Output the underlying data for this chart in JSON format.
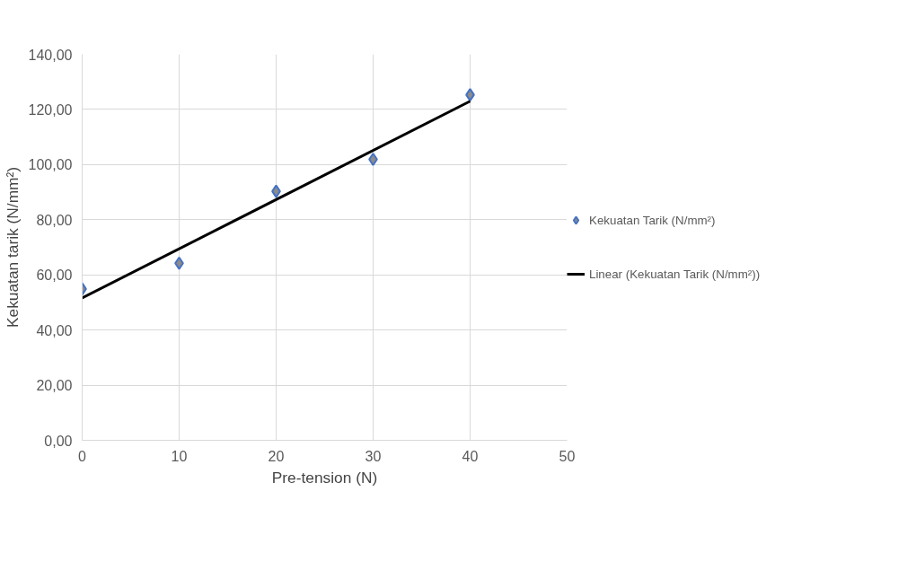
{
  "chart_data": {
    "type": "scatter",
    "xlabel": "Pre-tension (N)",
    "ylabel": "Kekuatan tarik (N/mm²)",
    "series": [
      {
        "name": "Kekuatan Tarik (N/mm²)",
        "color": "#4472c4",
        "marker": "diamond",
        "x": [
          0,
          10,
          20,
          30,
          40
        ],
        "values": [
          54.9,
          64.2,
          90.3,
          101.9,
          125.3
        ]
      },
      {
        "name": "Linear (Kekuatan Tarik (N/mm²))",
        "type": "line",
        "color": "#000000",
        "x": [
          0,
          40
        ],
        "values": [
          51.6,
          123.0
        ]
      }
    ],
    "xlim": [
      0,
      50
    ],
    "xticks": [
      0,
      10,
      20,
      30,
      40,
      50
    ],
    "ylim": [
      0,
      140
    ],
    "yticks": [
      {
        "value": 0,
        "label": "0,00"
      },
      {
        "value": 20,
        "label": "20,00"
      },
      {
        "value": 40,
        "label": "40,00"
      },
      {
        "value": 60,
        "label": "60,00"
      },
      {
        "value": 80,
        "label": "80,00"
      },
      {
        "value": 100,
        "label": "100,00"
      },
      {
        "value": 120,
        "label": "120,00"
      },
      {
        "value": 140,
        "label": "140,00"
      }
    ],
    "grid": true,
    "legend": "right"
  }
}
